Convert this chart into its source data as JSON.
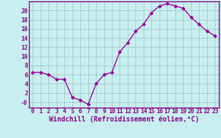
{
  "x": [
    0,
    1,
    2,
    3,
    4,
    5,
    6,
    7,
    8,
    9,
    10,
    11,
    12,
    13,
    14,
    15,
    16,
    17,
    18,
    19,
    20,
    21,
    22,
    23
  ],
  "y": [
    6.5,
    6.5,
    6.0,
    5.0,
    5.0,
    1.0,
    0.5,
    -0.5,
    4.0,
    6.0,
    6.5,
    11.0,
    13.0,
    15.5,
    17.0,
    19.5,
    21.0,
    21.5,
    21.0,
    20.5,
    18.5,
    17.0,
    15.5,
    14.5
  ],
  "line_color": "#990099",
  "marker": "D",
  "markersize": 2.5,
  "linewidth": 1.0,
  "bg_color": "#c8eef0",
  "grid_color": "#a0c8c8",
  "xlabel": "Windchill (Refroidissement éolien,°C)",
  "xlabel_fontsize": 7,
  "ylabel_ticks": [
    0,
    2,
    4,
    6,
    8,
    10,
    12,
    14,
    16,
    18,
    20
  ],
  "ytick_labels": [
    "-0",
    "2",
    "4",
    "6",
    "8",
    "10",
    "12",
    "14",
    "16",
    "18",
    "20"
  ],
  "ylim": [
    -1.2,
    22.0
  ],
  "xlim": [
    -0.5,
    23.5
  ],
  "xtick_labels": [
    "0",
    "1",
    "2",
    "3",
    "4",
    "5",
    "6",
    "7",
    "8",
    "9",
    "10",
    "11",
    "12",
    "13",
    "14",
    "15",
    "16",
    "17",
    "18",
    "19",
    "20",
    "21",
    "22",
    "23"
  ],
  "tick_fontsize": 6,
  "tick_color": "#880088",
  "spine_color": "#880088",
  "axis_line_color": "#880088"
}
